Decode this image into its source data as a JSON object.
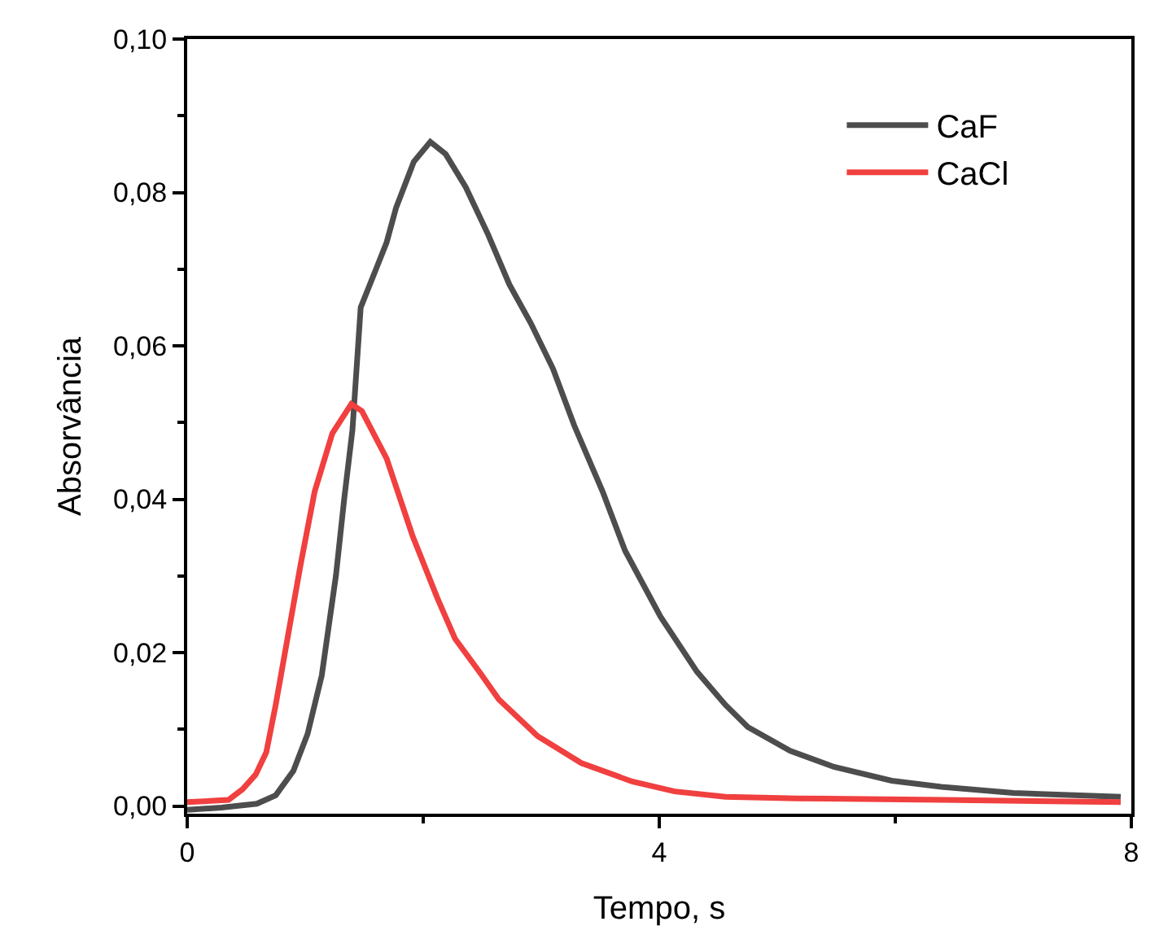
{
  "chart_data": {
    "type": "line",
    "xlabel": "Tempo, s",
    "ylabel": "Absorvância",
    "xlim": [
      0,
      8
    ],
    "ylim": [
      -0.001,
      0.1
    ],
    "xticks": [
      0,
      4,
      8
    ],
    "yticks": [
      {
        "value": 0,
        "label": "0,00"
      },
      {
        "value": 0.02,
        "label": "0,02"
      },
      {
        "value": 0.04,
        "label": "0,04"
      },
      {
        "value": 0.06,
        "label": "0,06"
      },
      {
        "value": 0.08,
        "label": "0,08"
      },
      {
        "value": 0.1,
        "label": "0,10"
      }
    ],
    "legend": "top right",
    "marker": "none",
    "line_style": "solid",
    "series": [
      {
        "name": "CaF",
        "color": "#4d4d4d",
        "x": [
          0,
          0.29,
          0.59,
          0.75,
          0.9,
          1.02,
          1.14,
          1.26,
          1.33,
          1.4,
          1.47,
          1.6,
          1.69,
          1.77,
          1.92,
          2.06,
          2.19,
          2.36,
          2.55,
          2.73,
          2.91,
          3.1,
          3.28,
          3.52,
          3.71,
          4.01,
          4.32,
          4.56,
          4.75,
          5.11,
          5.48,
          5.97,
          6.39,
          7.0,
          7.91
        ],
        "values": [
          -0.0005,
          -0.0002,
          0.0003,
          0.0014,
          0.0046,
          0.0094,
          0.017,
          0.03,
          0.04,
          0.049,
          0.065,
          0.07,
          0.0735,
          0.078,
          0.084,
          0.0866,
          0.085,
          0.0807,
          0.0745,
          0.068,
          0.063,
          0.057,
          0.0496,
          0.041,
          0.0333,
          0.0247,
          0.0175,
          0.0132,
          0.0103,
          0.0072,
          0.0051,
          0.0033,
          0.0025,
          0.0017,
          0.0012
        ]
      },
      {
        "name": "CaCl",
        "color": "#f0403f",
        "x": [
          0,
          0.35,
          0.47,
          0.58,
          0.67,
          0.75,
          0.84,
          0.96,
          1.08,
          1.23,
          1.39,
          1.48,
          1.69,
          1.91,
          2.12,
          2.27,
          2.49,
          2.64,
          2.97,
          3.34,
          3.77,
          4.13,
          4.56,
          5.17,
          6.39,
          7.91
        ],
        "values": [
          0.0005,
          0.0008,
          0.0022,
          0.0041,
          0.007,
          0.0132,
          0.021,
          0.0314,
          0.041,
          0.0486,
          0.0524,
          0.0515,
          0.0453,
          0.0352,
          0.0271,
          0.0218,
          0.0172,
          0.0139,
          0.0091,
          0.0056,
          0.0032,
          0.0019,
          0.0012,
          0.001,
          0.0008,
          0.0005
        ]
      }
    ]
  }
}
